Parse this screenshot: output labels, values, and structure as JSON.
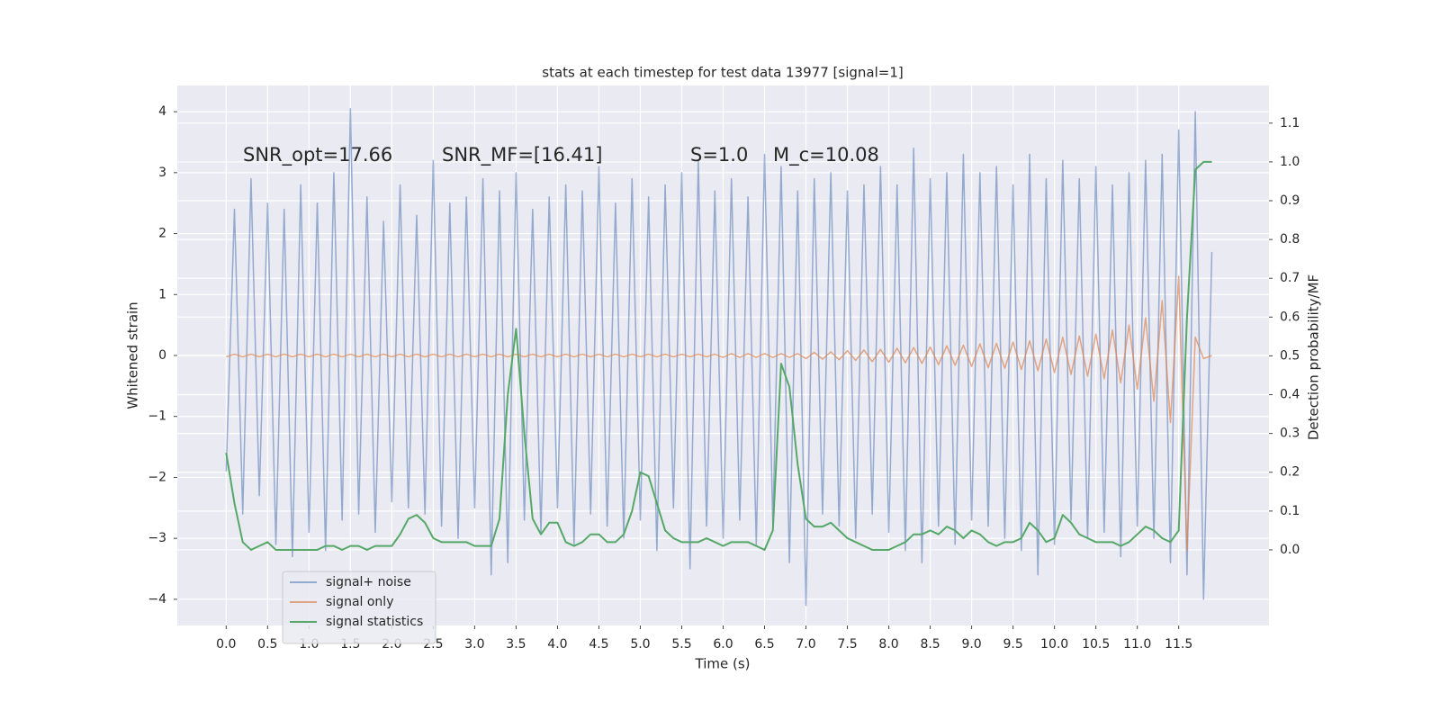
{
  "chart_data": {
    "type": "line",
    "title": "stats at each timestep for test data 13977 [signal=1]",
    "x_label": "Time (s)",
    "y_label": "Whitened strain",
    "y2_label": "Detection probability/MF",
    "annotations": [
      "SNR_opt=17.66",
      "SNR_MF=[16.41]",
      "S=1.0",
      "M_c=10.08"
    ],
    "xlim": [
      -0.59,
      12.59
    ],
    "ylim": [
      -4.43,
      4.43
    ],
    "y2lim": [
      -0.195,
      1.197
    ],
    "xticks": [
      {
        "value": 0,
        "label": "0.0"
      },
      0.5,
      {
        "value": 1,
        "label": "1.0"
      },
      1.5,
      {
        "value": 2,
        "label": "2.0"
      },
      2.5,
      {
        "value": 3,
        "label": "3.0"
      },
      3.5,
      {
        "value": 4,
        "label": "4.0"
      },
      4.5,
      {
        "value": 5,
        "label": "5.0"
      },
      5.5,
      {
        "value": 6,
        "label": "6.0"
      },
      6.5,
      {
        "value": 7,
        "label": "7.0"
      },
      7.5,
      {
        "value": 8,
        "label": "8.0"
      },
      8.5,
      {
        "value": 9,
        "label": "9.0"
      },
      9.5,
      {
        "value": 10,
        "label": "10.0"
      },
      10.5,
      {
        "value": 11,
        "label": "11.0"
      },
      11.5
    ],
    "yticks": [
      {
        "value": -4,
        "label": "−4"
      },
      {
        "value": -3,
        "label": "−3"
      },
      {
        "value": -2,
        "label": "−2"
      },
      {
        "value": -1,
        "label": "−1"
      },
      0,
      1,
      2,
      3,
      4
    ],
    "y2ticks": [
      {
        "value": 0,
        "label": "0.0"
      },
      0.1,
      0.2,
      0.3,
      0.4,
      0.5,
      0.6,
      0.7,
      0.8,
      0.9,
      {
        "value": 1,
        "label": "1.0"
      },
      1.1
    ],
    "grid": true,
    "legend": "lower left",
    "x": [
      0,
      0.1,
      0.2,
      0.3,
      0.4,
      0.5,
      0.6,
      0.7,
      0.8,
      0.9,
      1,
      1.1,
      1.2,
      1.3,
      1.4,
      1.5,
      1.6,
      1.7,
      1.8,
      1.9,
      2,
      2.1,
      2.2,
      2.3,
      2.4,
      2.5,
      2.6,
      2.7,
      2.8,
      2.9,
      3,
      3.1,
      3.2,
      3.3,
      3.4,
      3.5,
      3.6,
      3.7,
      3.8,
      3.9,
      4,
      4.1,
      4.2,
      4.3,
      4.4,
      4.5,
      4.6,
      4.7,
      4.8,
      4.9,
      5,
      5.1,
      5.2,
      5.3,
      5.4,
      5.5,
      5.6,
      5.7,
      5.8,
      5.9,
      6,
      6.1,
      6.2,
      6.3,
      6.4,
      6.5,
      6.6,
      6.7,
      6.8,
      6.9,
      7,
      7.1,
      7.2,
      7.3,
      7.4,
      7.5,
      7.6,
      7.7,
      7.8,
      7.9,
      8,
      8.1,
      8.2,
      8.3,
      8.4,
      8.5,
      8.6,
      8.7,
      8.8,
      8.9,
      9,
      9.1,
      9.2,
      9.3,
      9.4,
      9.5,
      9.6,
      9.7,
      9.8,
      9.9,
      10,
      10.1,
      10.2,
      10.3,
      10.4,
      10.5,
      10.6,
      10.7,
      10.8,
      10.9,
      11,
      11.1,
      11.2,
      11.3,
      11.4,
      11.5,
      11.6,
      11.7,
      11.8,
      11.9
    ],
    "series": [
      {
        "name": "signal+ noise",
        "color": "#4c72b0",
        "opacity": 0.55,
        "values": [
          -1.9,
          2.4,
          -2.6,
          2.9,
          -2.3,
          2.5,
          -3.1,
          2.4,
          -3.3,
          2.8,
          -2.9,
          2.5,
          -3.2,
          3.0,
          -2.7,
          4.05,
          -2.6,
          2.6,
          -2.9,
          2.2,
          -2.4,
          2.8,
          -2.5,
          2.3,
          -2.6,
          3.2,
          -2.8,
          2.5,
          -3.0,
          2.6,
          -2.5,
          2.9,
          -3.6,
          2.7,
          -3.4,
          3.0,
          -2.7,
          2.4,
          -2.9,
          2.6,
          -2.5,
          2.8,
          -3.1,
          2.7,
          -2.6,
          3.1,
          -2.8,
          2.5,
          -3.0,
          2.9,
          -2.7,
          2.6,
          -3.2,
          2.8,
          -2.5,
          3.0,
          -3.5,
          3.2,
          -2.8,
          2.7,
          -3.0,
          2.9,
          -2.7,
          2.6,
          -3.1,
          3.3,
          -2.8,
          3.1,
          -3.4,
          2.7,
          -4.1,
          2.9,
          -2.6,
          3.0,
          -2.8,
          2.7,
          -3.0,
          2.8,
          -2.6,
          3.1,
          -2.9,
          2.8,
          -3.2,
          3.4,
          -3.4,
          2.9,
          -2.8,
          3.0,
          -3.1,
          3.3,
          -2.7,
          3.0,
          -2.8,
          3.1,
          -3.0,
          2.8,
          -3.2,
          3.3,
          -3.6,
          2.9,
          -3.1,
          3.2,
          -2.7,
          2.9,
          -3.0,
          3.1,
          -2.9,
          2.8,
          -3.3,
          3.0,
          -2.8,
          3.2,
          -3.0,
          3.3,
          -3.4,
          3.7,
          -3.6,
          4.0,
          -4.0,
          1.7
        ]
      },
      {
        "name": "signal only",
        "color": "#dd8452",
        "opacity": 0.7,
        "values": [
          -0.02,
          0.02,
          -0.02,
          0.02,
          -0.02,
          0.02,
          -0.02,
          0.02,
          -0.02,
          0.02,
          -0.02,
          0.02,
          -0.02,
          0.02,
          -0.02,
          0.02,
          -0.02,
          0.02,
          -0.02,
          0.02,
          -0.02,
          0.02,
          -0.02,
          0.02,
          -0.02,
          0.02,
          -0.02,
          0.02,
          -0.02,
          0.02,
          -0.02,
          0.02,
          -0.02,
          0.02,
          -0.02,
          0.02,
          -0.02,
          0.02,
          -0.02,
          0.02,
          -0.02,
          0.02,
          -0.02,
          0.02,
          -0.02,
          0.02,
          -0.02,
          0.02,
          -0.02,
          0.02,
          -0.02,
          0.02,
          -0.02,
          0.02,
          -0.02,
          0.02,
          -0.02,
          0.02,
          -0.02,
          0.02,
          -0.03,
          0.03,
          -0.03,
          0.03,
          -0.03,
          0.03,
          -0.03,
          0.03,
          -0.03,
          0.03,
          -0.05,
          0.05,
          -0.06,
          0.06,
          -0.07,
          0.08,
          -0.08,
          0.09,
          -0.1,
          0.1,
          -0.11,
          0.12,
          -0.12,
          0.13,
          -0.13,
          0.14,
          -0.15,
          0.16,
          -0.16,
          0.17,
          -0.18,
          0.19,
          -0.2,
          0.2,
          -0.21,
          0.22,
          -0.23,
          0.24,
          -0.25,
          0.27,
          -0.28,
          0.3,
          -0.31,
          0.32,
          -0.34,
          0.35,
          -0.38,
          0.42,
          -0.45,
          0.5,
          -0.55,
          0.62,
          -0.75,
          0.9,
          -1.1,
          1.3,
          -3.2,
          0.3,
          -0.05,
          0.0
        ]
      },
      {
        "name": "signal statistics",
        "color": "#55a868",
        "opacity": 1,
        "axis": "y2",
        "values": [
          0.25,
          0.12,
          0.02,
          0.0,
          0.01,
          0.02,
          0.0,
          0.0,
          0.0,
          0.0,
          0.0,
          0.0,
          0.01,
          0.01,
          0.0,
          0.01,
          0.01,
          0.0,
          0.01,
          0.01,
          0.01,
          0.04,
          0.08,
          0.09,
          0.07,
          0.03,
          0.02,
          0.02,
          0.02,
          0.02,
          0.01,
          0.01,
          0.01,
          0.08,
          0.4,
          0.57,
          0.3,
          0.08,
          0.04,
          0.07,
          0.07,
          0.02,
          0.01,
          0.02,
          0.04,
          0.04,
          0.02,
          0.02,
          0.04,
          0.1,
          0.2,
          0.19,
          0.12,
          0.05,
          0.03,
          0.02,
          0.02,
          0.02,
          0.03,
          0.02,
          0.01,
          0.02,
          0.02,
          0.02,
          0.01,
          0.0,
          0.05,
          0.48,
          0.42,
          0.22,
          0.08,
          0.06,
          0.06,
          0.07,
          0.05,
          0.03,
          0.02,
          0.01,
          0.0,
          0.0,
          0.0,
          0.01,
          0.02,
          0.04,
          0.04,
          0.05,
          0.04,
          0.06,
          0.05,
          0.03,
          0.05,
          0.04,
          0.02,
          0.01,
          0.02,
          0.02,
          0.03,
          0.07,
          0.05,
          0.02,
          0.03,
          0.09,
          0.07,
          0.04,
          0.03,
          0.02,
          0.02,
          0.02,
          0.01,
          0.02,
          0.04,
          0.06,
          0.05,
          0.03,
          0.02,
          0.05,
          0.6,
          0.98,
          1.0,
          1.0
        ]
      }
    ]
  }
}
